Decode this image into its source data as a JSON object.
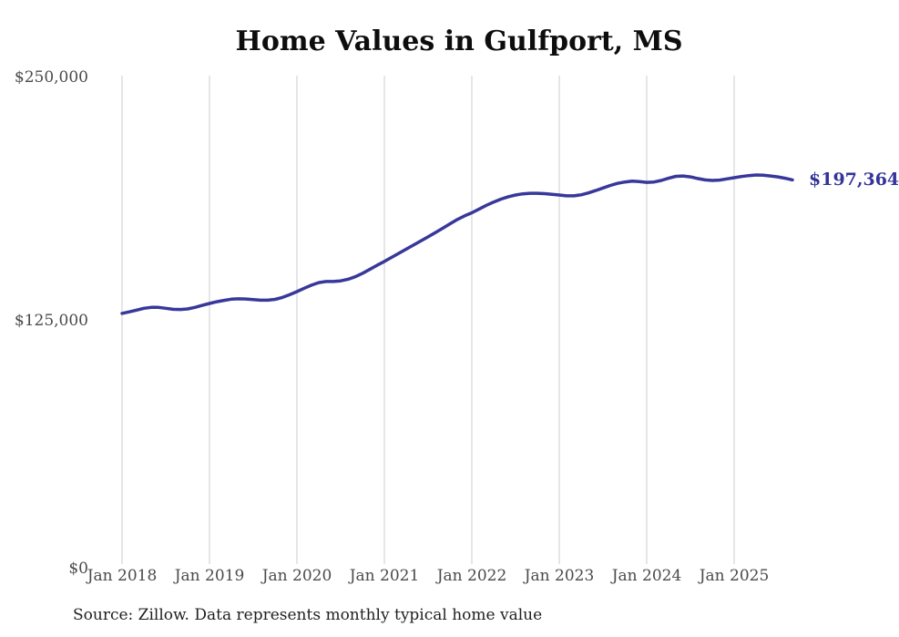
{
  "chart": {
    "title": "Home Values in Gulfport, MS",
    "end_label": "$197,364",
    "source_note": "Source: Zillow. Data represents monthly typical home value",
    "line_color": "#38389b",
    "end_label_color": "#33339a",
    "grid_color": "#cccccc",
    "tick_color": "#4a4a4a"
  },
  "chart_data": {
    "type": "line",
    "title": "Home Values in Gulfport, MS",
    "xlabel": "",
    "ylabel": "",
    "ylim": [
      0,
      250000
    ],
    "y_tick_values": [
      0,
      125000,
      250000
    ],
    "y_tick_labels": [
      "$0",
      "$125,000",
      "$250,000"
    ],
    "x_tick_labels": [
      "Jan 2018",
      "Jan 2019",
      "Jan 2020",
      "Jan 2021",
      "Jan 2022",
      "Jan 2023",
      "Jan 2024",
      "Jan 2025"
    ],
    "grid": "vertical-only",
    "legend_position": "none",
    "frequency": "monthly",
    "x_start_month": "2018-01",
    "x_end_month": "2025-09",
    "last_value": 197364,
    "last_value_label": "$197,364",
    "series": [
      {
        "name": "Typical home value",
        "values": [
          128800,
          129600,
          130500,
          131400,
          131900,
          131900,
          131400,
          130900,
          130800,
          131100,
          131900,
          132900,
          133900,
          134800,
          135500,
          136100,
          136300,
          136200,
          135900,
          135600,
          135600,
          136000,
          137000,
          138400,
          140000,
          141700,
          143300,
          144600,
          145200,
          145200,
          145500,
          146300,
          147600,
          149400,
          151400,
          153500,
          155500,
          157600,
          159700,
          161800,
          163900,
          166000,
          168100,
          170300,
          172500,
          174800,
          177000,
          178900,
          180500,
          182400,
          184300,
          186000,
          187500,
          188700,
          189600,
          190200,
          190500,
          190500,
          190300,
          190000,
          189600,
          189200,
          189200,
          189700,
          190700,
          191900,
          193200,
          194500,
          195600,
          196300,
          196700,
          196500,
          196100,
          196300,
          197100,
          198200,
          199200,
          199400,
          198900,
          198100,
          197400,
          197100,
          197300,
          197900,
          198500,
          199100,
          199600,
          199900,
          199800,
          199400,
          198900,
          198200,
          197364
        ]
      }
    ]
  }
}
